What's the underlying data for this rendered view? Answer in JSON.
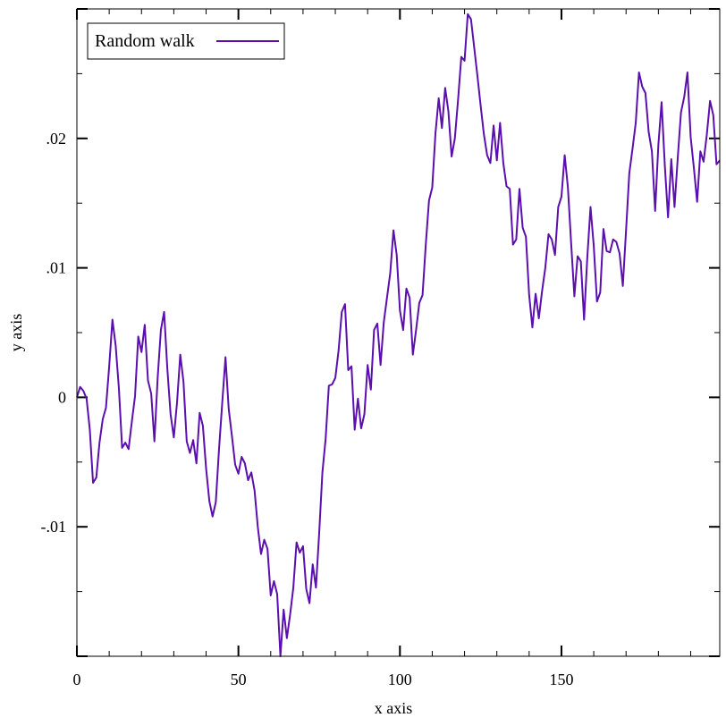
{
  "chart_data": {
    "type": "line",
    "title": "",
    "xlabel": "x axis",
    "ylabel": "y axis",
    "xlim": [
      0,
      199
    ],
    "ylim": [
      -0.02,
      0.03
    ],
    "x_ticks": [
      0,
      50,
      100,
      150
    ],
    "x_tick_labels": [
      "0",
      "50",
      "100",
      "150"
    ],
    "y_ticks": [
      -0.01,
      0,
      0.01,
      0.02
    ],
    "y_tick_labels": [
      "-.01",
      "0",
      ".01",
      ".02"
    ],
    "grid": false,
    "legend_position": "top-left",
    "series": [
      {
        "name": "Random walk",
        "color": "#5a0fae",
        "x_start": 0,
        "x_step": 1,
        "values": [
          0.0,
          0.0008,
          0.0005,
          -0.0001,
          -0.0025,
          -0.0066,
          -0.0062,
          -0.0035,
          -0.0017,
          -0.0008,
          0.0024,
          0.006,
          0.004,
          0.0007,
          -0.0039,
          -0.0035,
          -0.004,
          -0.0019,
          0.0001,
          0.0047,
          0.0035,
          0.0056,
          0.0013,
          0.0003,
          -0.0034,
          0.0015,
          0.0052,
          0.0066,
          0.0022,
          -0.0013,
          -0.0031,
          -0.0004,
          0.0033,
          0.0012,
          -0.0034,
          -0.0043,
          -0.0033,
          -0.0051,
          -0.0012,
          -0.0022,
          -0.0055,
          -0.008,
          -0.0092,
          -0.0081,
          -0.004,
          -0.0004,
          0.0031,
          -0.0009,
          -0.003,
          -0.0052,
          -0.0059,
          -0.0046,
          -0.0051,
          -0.0064,
          -0.0058,
          -0.0072,
          -0.01,
          -0.0121,
          -0.011,
          -0.0117,
          -0.0153,
          -0.0142,
          -0.0152,
          -0.02,
          -0.0164,
          -0.0186,
          -0.0168,
          -0.0147,
          -0.0112,
          -0.012,
          -0.0115,
          -0.0148,
          -0.0159,
          -0.0129,
          -0.0147,
          -0.0105,
          -0.0058,
          -0.0032,
          0.0009,
          0.001,
          0.0015,
          0.0036,
          0.0066,
          0.0072,
          0.0021,
          0.0024,
          -0.0025,
          -0.0001,
          -0.0024,
          -0.0013,
          0.0025,
          0.0006,
          0.0052,
          0.0057,
          0.0025,
          0.0058,
          0.0077,
          0.0096,
          0.0129,
          0.011,
          0.0067,
          0.0052,
          0.0084,
          0.0077,
          0.0033,
          0.0052,
          0.0073,
          0.0079,
          0.0118,
          0.0152,
          0.0162,
          0.0204,
          0.0231,
          0.0208,
          0.0239,
          0.0221,
          0.0186,
          0.02,
          0.023,
          0.0263,
          0.026,
          0.0296,
          0.0292,
          0.027,
          0.0248,
          0.0225,
          0.0203,
          0.0187,
          0.0181,
          0.021,
          0.0183,
          0.0212,
          0.0181,
          0.0163,
          0.0161,
          0.0118,
          0.0122,
          0.0161,
          0.0131,
          0.0124,
          0.0079,
          0.0054,
          0.008,
          0.0061,
          0.0082,
          0.01,
          0.0126,
          0.0122,
          0.011,
          0.0147,
          0.0155,
          0.0187,
          0.0162,
          0.0119,
          0.0078,
          0.0109,
          0.0105,
          0.006,
          0.0108,
          0.0147,
          0.0117,
          0.0074,
          0.0081,
          0.013,
          0.0113,
          0.0112,
          0.0122,
          0.012,
          0.0111,
          0.0086,
          0.0129,
          0.0173,
          0.0192,
          0.0212,
          0.0251,
          0.024,
          0.0235,
          0.0205,
          0.019,
          0.0144,
          0.0195,
          0.0228,
          0.0179,
          0.0139,
          0.0184,
          0.0147,
          0.0185,
          0.022,
          0.0232,
          0.0251,
          0.0201,
          0.0177,
          0.0151,
          0.019,
          0.0182,
          0.0203,
          0.0229,
          0.0218,
          0.018,
          0.0183
        ]
      }
    ]
  }
}
